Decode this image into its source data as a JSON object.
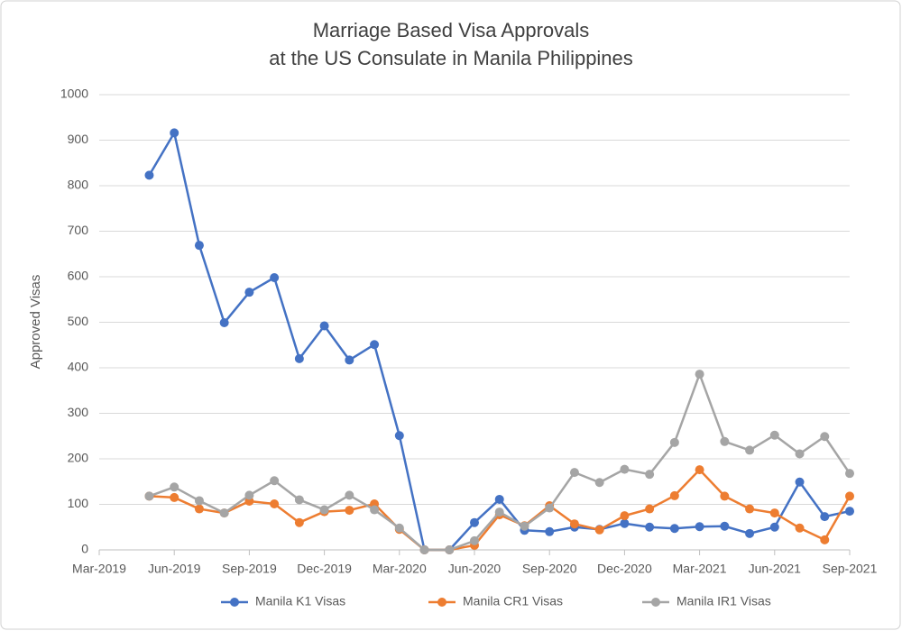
{
  "chart_data": {
    "type": "line",
    "title": [
      "Marriage Based Visa Approvals",
      "at the US Consulate in Manila Philippines"
    ],
    "y_label": "Approved Visas",
    "x": [
      "2019-05",
      "2019-06",
      "2019-07",
      "2019-08",
      "2019-09",
      "2019-10",
      "2019-11",
      "2019-12",
      "2020-01",
      "2020-02",
      "2020-03",
      "2020-04",
      "2020-05",
      "2020-06",
      "2020-07",
      "2020-08",
      "2020-09",
      "2020-10",
      "2020-11",
      "2020-12",
      "2021-01",
      "2021-02",
      "2021-03",
      "2021-04",
      "2021-05",
      "2021-06",
      "2021-07",
      "2021-08",
      "2021-09"
    ],
    "series": [
      {
        "name": "Manila K1 Visas",
        "color": "#4472c4",
        "values": [
          823,
          916,
          669,
          499,
          566,
          598,
          420,
          492,
          417,
          451,
          251,
          0,
          0,
          60,
          111,
          43,
          40,
          50,
          45,
          58,
          50,
          47,
          51,
          52,
          36,
          50,
          149,
          73,
          85
        ]
      },
      {
        "name": "Manila CR1 Visas",
        "color": "#ed7d31",
        "values": [
          118,
          115,
          90,
          81,
          107,
          101,
          60,
          84,
          87,
          101,
          45,
          0,
          0,
          10,
          77,
          53,
          97,
          57,
          44,
          75,
          90,
          119,
          176,
          118,
          90,
          81,
          48,
          22,
          118
        ]
      },
      {
        "name": "Manila IR1 Visas",
        "color": "#a5a5a5",
        "values": [
          118,
          138,
          108,
          81,
          120,
          152,
          110,
          88,
          120,
          88,
          48,
          0,
          0,
          20,
          83,
          52,
          92,
          170,
          148,
          177,
          166,
          236,
          386,
          238,
          219,
          252,
          211,
          249,
          168
        ]
      }
    ],
    "xlim": [
      "2019-03",
      "2021-09"
    ],
    "xticks": [
      {
        "value": "2019-03",
        "label": "Mar-2019"
      },
      {
        "value": "2019-06",
        "label": "Jun-2019"
      },
      {
        "value": "2019-09",
        "label": "Sep-2019"
      },
      {
        "value": "2019-12",
        "label": "Dec-2019"
      },
      {
        "value": "2020-03",
        "label": "Mar-2020"
      },
      {
        "value": "2020-06",
        "label": "Jun-2020"
      },
      {
        "value": "2020-09",
        "label": "Sep-2020"
      },
      {
        "value": "2020-12",
        "label": "Dec-2020"
      },
      {
        "value": "2021-03",
        "label": "Mar-2021"
      },
      {
        "value": "2021-06",
        "label": "Jun-2021"
      },
      {
        "value": "2021-09",
        "label": "Sep-2021"
      }
    ],
    "ylim": [
      0,
      1000
    ],
    "yticks": [
      0,
      100,
      200,
      300,
      400,
      500,
      600,
      700,
      800,
      900,
      1000
    ],
    "grid": true,
    "legend": "bottom"
  }
}
